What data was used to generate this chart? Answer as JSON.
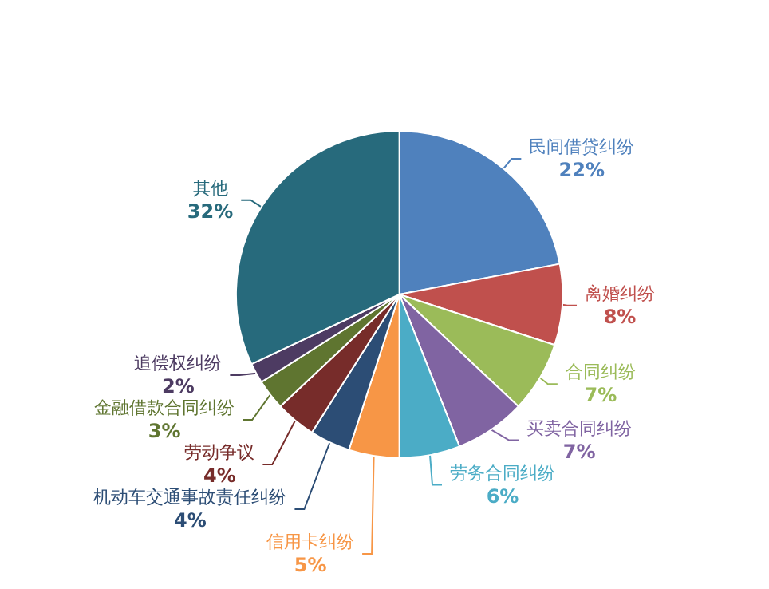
{
  "chart_data": {
    "type": "pie",
    "categories": [
      "民间借贷纠纷",
      "离婚纠纷",
      "合同纠纷",
      "买卖合同纠纷",
      "劳务合同纠纷",
      "信用卡纠纷",
      "机动车交通事故责任纠纷",
      "劳动争议",
      "金融借款合同纠纷",
      "追偿权纠纷",
      "其他"
    ],
    "values": [
      22,
      8,
      7,
      7,
      6,
      5,
      4,
      4,
      3,
      2,
      32
    ],
    "colors": [
      "#4f81bd",
      "#c0504d",
      "#9bbb59",
      "#8064a2",
      "#4bacc6",
      "#f79646",
      "#2c4d75",
      "#772c2a",
      "#5f7530",
      "#4d3b62",
      "#276a7c"
    ],
    "value_labels": [
      "22%",
      "8%",
      "7%",
      "7%",
      "6%",
      "5%",
      "4%",
      "4%",
      "3%",
      "2%",
      "32%"
    ],
    "legend": false
  }
}
